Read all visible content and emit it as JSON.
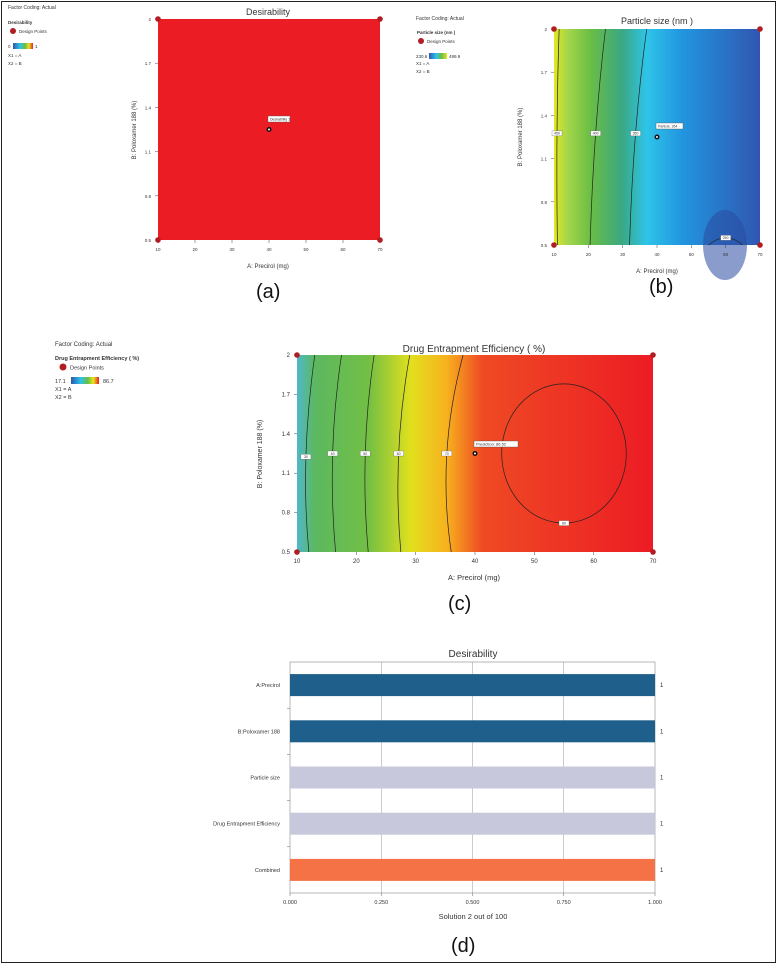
{
  "panels": {
    "a": {
      "letter": "(a)",
      "factor_coding": "Factor Coding: Actual",
      "legend_title": "Desirability",
      "legend_points": "Design Points",
      "legend_min": "0",
      "legend_max": "1",
      "x1": "X1 = A",
      "x2": "X2 = B",
      "title": "Desirability",
      "xlabel": "A: Precirol  (mg)",
      "ylabel": "B: Poloxamer 188 (%)",
      "flag": "Desirability 1",
      "fill_color": "#ec1c24"
    },
    "b": {
      "letter": "(b)",
      "factor_coding": "Factor Coding: Actual",
      "legend_title": "Particle size  (nm )",
      "legend_points": "Design Points",
      "legend_min": "230.6",
      "legend_max": "499.9",
      "x1": "X1 = A",
      "x2": "X2 = B",
      "title": "Particle size  (nm )",
      "xlabel": "A: Precirol  (mg)",
      "ylabel": "B: Poloxamer 188 (%)",
      "flag": "Particle: 264",
      "contour_labels": [
        "450",
        "400",
        "350",
        "250"
      ]
    },
    "c": {
      "letter": "(c)",
      "factor_coding": "Factor Coding: Actual",
      "legend_title": "Drug Entrapment Efficiency  ( %)",
      "legend_points": "Design Points",
      "legend_min": "17.1",
      "legend_max": "86.7",
      "x1": "X1 = A",
      "x2": "X2 = B",
      "title": "Drug Entrapment Efficiency  ( %)",
      "xlabel": "A: Precirol  (mg)",
      "ylabel": "B: Poloxamer 188 (%)",
      "flag": "Prediction: 86.52",
      "contour_labels": [
        "30",
        "40",
        "50",
        "60",
        "70",
        "80"
      ]
    },
    "d": {
      "letter": "(d)"
    }
  },
  "chart_data": [
    {
      "id": "a",
      "type": "heatmap",
      "title": "Desirability",
      "xlabel": "A: Precirol  (mg)",
      "ylabel": "B: Poloxamer 188 (%)",
      "xlim": [
        10,
        70
      ],
      "ylim": [
        0.5,
        2
      ],
      "x_ticks": [
        10,
        20,
        30,
        40,
        50,
        60,
        70
      ],
      "y_ticks": [
        0.5,
        0.8,
        1.1,
        1.4,
        1.7,
        2
      ],
      "design_points": [
        [
          10,
          0.5
        ],
        [
          70,
          0.5
        ],
        [
          10,
          2
        ],
        [
          70,
          2
        ],
        [
          40,
          1.25
        ]
      ],
      "prediction": {
        "x": 40,
        "y": 1.25,
        "label": "Desirability 1"
      },
      "color_range": [
        0,
        1
      ]
    },
    {
      "id": "b",
      "type": "heatmap",
      "title": "Particle size  (nm )",
      "xlabel": "A: Precirol  (mg)",
      "ylabel": "B: Poloxamer 188 (%)",
      "xlim": [
        10,
        70
      ],
      "ylim": [
        0.5,
        2
      ],
      "x_ticks": [
        10,
        20,
        30,
        40,
        50,
        60,
        70
      ],
      "y_ticks": [
        0.5,
        0.8,
        1.1,
        1.4,
        1.7,
        2
      ],
      "design_points": [
        [
          10,
          0.5
        ],
        [
          70,
          0.5
        ],
        [
          10,
          2
        ],
        [
          70,
          2
        ],
        [
          40,
          1.25
        ]
      ],
      "prediction": {
        "x": 40,
        "y": 1.25,
        "label": "Particle: 264"
      },
      "color_range": [
        230.6,
        499.9
      ],
      "contours": [
        {
          "label": "450",
          "points": [
            [
              11.5,
              2
            ],
            [
              10.5,
              1.3
            ],
            [
              11,
              0.5
            ]
          ]
        },
        {
          "label": "400",
          "points": [
            [
              25,
              2
            ],
            [
              21.5,
              1.3
            ],
            [
              20.5,
              0.5
            ]
          ]
        },
        {
          "label": "350",
          "points": [
            [
              37,
              2
            ],
            [
              33,
              1.3
            ],
            [
              32,
              0.5
            ]
          ]
        },
        {
          "label": "250",
          "points": [
            [
              55,
              0.5
            ],
            [
              60,
              0.6
            ],
            [
              65,
              0.5
            ]
          ]
        }
      ]
    },
    {
      "id": "c",
      "type": "heatmap",
      "title": "Drug Entrapment Efficiency  ( %)",
      "xlabel": "A: Precirol  (mg)",
      "ylabel": "B: Poloxamer 188 (%)",
      "xlim": [
        10,
        70
      ],
      "ylim": [
        0.5,
        2
      ],
      "x_ticks": [
        10,
        20,
        30,
        40,
        50,
        60,
        70
      ],
      "y_ticks": [
        0.5,
        0.8,
        1.1,
        1.4,
        1.7,
        2
      ],
      "design_points": [
        [
          10,
          0.5
        ],
        [
          70,
          0.5
        ],
        [
          10,
          2
        ],
        [
          70,
          2
        ],
        [
          40,
          1.25
        ]
      ],
      "prediction": {
        "x": 40,
        "y": 1.25,
        "label": "Prediction: 86.52"
      },
      "color_range": [
        17.1,
        86.7
      ],
      "contours": [
        {
          "label": "30",
          "points": [
            [
              13,
              2
            ],
            [
              10.5,
              1.2
            ],
            [
              12,
              0.5
            ]
          ]
        },
        {
          "label": "40",
          "points": [
            [
              17.5,
              2
            ],
            [
              15,
              1.25
            ],
            [
              16.5,
              0.5
            ]
          ]
        },
        {
          "label": "50",
          "points": [
            [
              23,
              2
            ],
            [
              20.5,
              1.25
            ],
            [
              22,
              0.5
            ]
          ]
        },
        {
          "label": "60",
          "points": [
            [
              29,
              2
            ],
            [
              26,
              1.25
            ],
            [
              27.5,
              0.5
            ]
          ]
        },
        {
          "label": "70",
          "points": [
            [
              38,
              2
            ],
            [
              33.5,
              1.25
            ],
            [
              36,
              0.5
            ]
          ]
        },
        {
          "label": "80",
          "ellipse": {
            "cx": 55,
            "cy": 1.25,
            "rx": 10.5,
            "ry": 0.53
          }
        }
      ]
    },
    {
      "id": "d",
      "type": "bar",
      "orientation": "horizontal",
      "title": "Desirability",
      "xlabel": "Solution 2 out of 100",
      "xlim": [
        0,
        1
      ],
      "x_ticks": [
        "0.000",
        "0.250",
        "0.500",
        "0.750",
        "1.000"
      ],
      "categories": [
        "A:Precirol",
        "B:Poloxamer 188",
        "Particle size",
        "Drug Entrapment Efficiency",
        "Combined"
      ],
      "values": [
        1,
        1,
        1,
        1,
        1
      ],
      "value_labels": [
        "1",
        "1",
        "1",
        "1",
        "1"
      ],
      "colors": [
        "#1f5f8b",
        "#1f5f8b",
        "#c8c8dc",
        "#c8c8dc",
        "#f47246"
      ]
    }
  ]
}
